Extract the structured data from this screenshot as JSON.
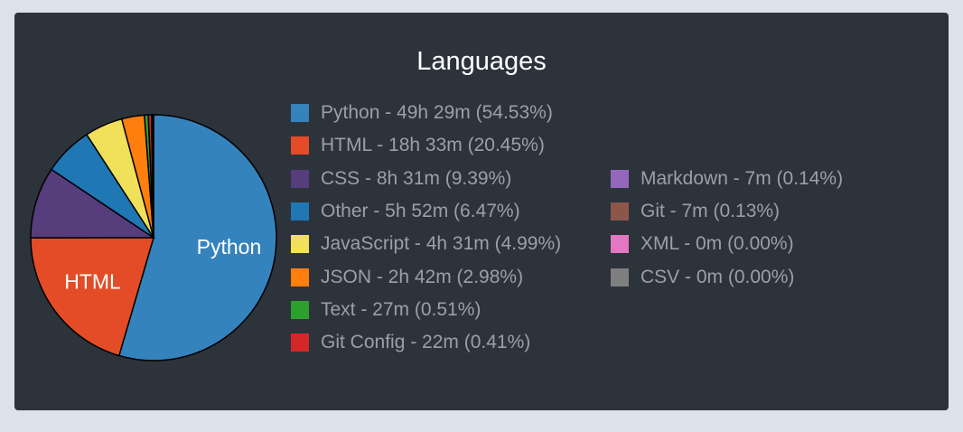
{
  "chart_data": {
    "type": "pie",
    "title": "Languages",
    "series": [
      {
        "name": "Python",
        "value": 54.53,
        "label": "Python - 49h 29m (54.53%)",
        "color": "#3583bd",
        "slice_label": "Python"
      },
      {
        "name": "HTML",
        "value": 20.45,
        "label": "HTML - 18h 33m (20.45%)",
        "color": "#e34c26",
        "slice_label": "HTML"
      },
      {
        "name": "CSS",
        "value": 9.39,
        "label": "CSS - 8h 31m (9.39%)",
        "color": "#563d7c"
      },
      {
        "name": "Other",
        "value": 6.47,
        "label": "Other - 5h 52m (6.47%)",
        "color": "#1f77b4"
      },
      {
        "name": "JavaScript",
        "value": 4.99,
        "label": "JavaScript - 4h 31m (4.99%)",
        "color": "#f1e05a"
      },
      {
        "name": "JSON",
        "value": 2.98,
        "label": "JSON - 2h 42m (2.98%)",
        "color": "#ff7f0e"
      },
      {
        "name": "Text",
        "value": 0.51,
        "label": "Text - 27m (0.51%)",
        "color": "#2ca02c"
      },
      {
        "name": "Git Config",
        "value": 0.41,
        "label": "Git Config - 22m (0.41%)",
        "color": "#d62728"
      },
      {
        "name": "Markdown",
        "value": 0.14,
        "label": "Markdown - 7m (0.14%)",
        "color": "#9467bd"
      },
      {
        "name": "Git",
        "value": 0.13,
        "label": "Git - 7m (0.13%)",
        "color": "#8c564b"
      },
      {
        "name": "XML",
        "value": 0.0,
        "label": "XML - 0m (0.00%)",
        "color": "#e377c2"
      },
      {
        "name": "CSV",
        "value": 0.0,
        "label": "CSV - 0m (0.00%)",
        "color": "#7f7f7f"
      }
    ]
  }
}
